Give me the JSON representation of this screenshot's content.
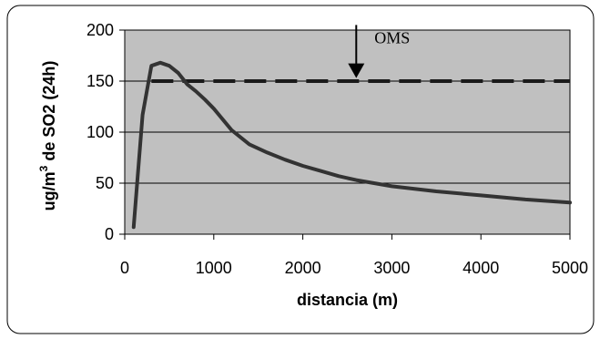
{
  "chart_data": {
    "type": "line",
    "title": "",
    "xlabel": "distancia (m)",
    "ylabel_main": "ug/m",
    "ylabel_sup": "3",
    "ylabel_rest": " de SO2 (24h)",
    "xlim": [
      0,
      5000
    ],
    "ylim": [
      0,
      200
    ],
    "x_ticks": [
      0,
      1000,
      2000,
      3000,
      4000,
      5000
    ],
    "y_ticks": [
      0,
      50,
      100,
      150,
      200
    ],
    "x_tick_labels": [
      "0",
      "1000",
      "2000",
      "3000",
      "4000",
      "5000"
    ],
    "y_tick_labels": [
      "0",
      "50",
      "100",
      "150",
      "200"
    ],
    "grid": "horizontal",
    "plot_background": "#c0c0c0",
    "line_color": "#333333",
    "series": [
      {
        "x": [
          100,
          200,
          300,
          400,
          500,
          600,
          700,
          800,
          900,
          1000,
          1200,
          1400,
          1600,
          1800,
          2000,
          2200,
          2400,
          2600,
          2800,
          3000,
          3500,
          4000,
          4500,
          5000
        ],
        "y": [
          7,
          117,
          165,
          168,
          165,
          158,
          147,
          140,
          132,
          123,
          102,
          88,
          80,
          73,
          67,
          62,
          57,
          53,
          50,
          47,
          42,
          38,
          34,
          31
        ]
      }
    ],
    "reference_line": {
      "y": 150,
      "x_start": 300,
      "x_end": 5000,
      "style": "dashed"
    },
    "annotation": {
      "text": "OMS",
      "arrow_x": 2600,
      "arrow_from_y": 205,
      "arrow_to_y": 153
    }
  }
}
